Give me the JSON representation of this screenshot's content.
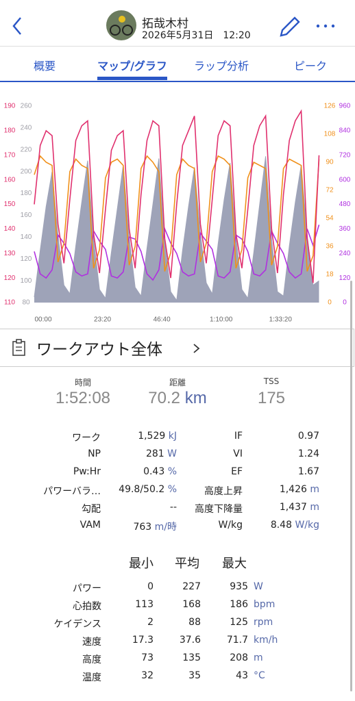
{
  "header": {
    "title": "拓哉木村",
    "datetime": "2026年5月31日　12:20"
  },
  "tabs": {
    "items": [
      "概要",
      "マップ/グラフ",
      "ラップ分析",
      "ピーク"
    ],
    "active": 1
  },
  "chart_data": {
    "type": "line",
    "x": [
      0,
      140,
      280,
      420,
      560,
      700,
      840,
      980,
      1120,
      1260,
      1400,
      1540,
      1680,
      1820,
      1960,
      2100,
      2240,
      2380,
      2520,
      2660,
      2800,
      2940,
      3080,
      3220,
      3360,
      3500,
      3640,
      3780,
      3920,
      4060,
      4200,
      4340,
      4480,
      4620,
      4760,
      4900,
      5040,
      5180,
      5320,
      5460,
      5600,
      5740,
      5880,
      6020,
      6160,
      6300,
      6440,
      6580,
      6720
    ],
    "xlim": [
      0,
      6728
    ],
    "xticks": [
      {
        "value": 0,
        "label": "00:00"
      },
      {
        "value": 1400,
        "label": "23:20"
      },
      {
        "value": 2800,
        "label": "46:40"
      },
      {
        "value": 4200,
        "label": "1:10:00"
      },
      {
        "value": 5600,
        "label": "1:33:20"
      }
    ],
    "axes": [
      {
        "side": "left",
        "color": "#e0306e",
        "lim": [
          110,
          190
        ],
        "ticks": [
          110,
          120,
          130,
          140,
          150,
          160,
          170,
          180,
          190
        ]
      },
      {
        "side": "left",
        "color": "#a0a0a8",
        "lim": [
          80,
          260
        ],
        "ticks": [
          80,
          100,
          120,
          140,
          160,
          180,
          200,
          220,
          240,
          260
        ]
      },
      {
        "side": "right",
        "color": "#f0901a",
        "lim": [
          0,
          126
        ],
        "ticks": [
          0,
          18,
          36,
          54,
          72,
          90,
          108,
          126
        ]
      },
      {
        "side": "right",
        "color": "#b030e0",
        "lim": [
          0,
          960
        ],
        "ticks": [
          0,
          120,
          240,
          360,
          480,
          600,
          720,
          840,
          960
        ]
      }
    ],
    "series": [
      {
        "axis": 1,
        "fill": true,
        "color": "#9ea3b8",
        "values": [
          85,
          128,
          168,
          200,
          142,
          96,
          88,
          132,
          172,
          210,
          138,
          92,
          84,
          126,
          166,
          206,
          140,
          94,
          86,
          130,
          170,
          212,
          136,
          90,
          82,
          128,
          168,
          204,
          144,
          98,
          88,
          134,
          174,
          208,
          140,
          92,
          84,
          126,
          170,
          214,
          138,
          90,
          86,
          132,
          172,
          206,
          142,
          96,
          100
        ]
      },
      {
        "axis": 3,
        "color": "#b030e0",
        "values": [
          250,
          140,
          120,
          160,
          330,
          290,
          240,
          150,
          130,
          140,
          350,
          300,
          260,
          130,
          120,
          150,
          320,
          310,
          250,
          140,
          110,
          160,
          360,
          290,
          240,
          150,
          130,
          140,
          340,
          300,
          260,
          130,
          120,
          150,
          330,
          310,
          250,
          140,
          130,
          160,
          350,
          290,
          240,
          150,
          120,
          140,
          360,
          280,
          380
        ]
      },
      {
        "axis": 2,
        "color": "#f0901a",
        "values": [
          82,
          94,
          90,
          88,
          26,
          38,
          84,
          92,
          88,
          86,
          22,
          34,
          80,
          90,
          92,
          88,
          24,
          36,
          86,
          94,
          90,
          84,
          20,
          32,
          82,
          92,
          88,
          86,
          26,
          38,
          84,
          94,
          92,
          88,
          22,
          34,
          80,
          90,
          88,
          86,
          24,
          36,
          86,
          92,
          90,
          88,
          20,
          30,
          92
        ]
      },
      {
        "axis": 0,
        "color": "#e0306e",
        "values": [
          150,
          174,
          180,
          178,
          142,
          126,
          152,
          176,
          182,
          184,
          138,
          122,
          148,
          172,
          178,
          180,
          140,
          124,
          154,
          176,
          184,
          182,
          136,
          120,
          150,
          174,
          180,
          186,
          142,
          126,
          152,
          178,
          184,
          182,
          138,
          124,
          148,
          174,
          182,
          186,
          140,
          122,
          154,
          176,
          184,
          188,
          136,
          118,
          170
        ]
      }
    ]
  },
  "workout": {
    "title": "ワークアウト全体"
  },
  "summary": [
    {
      "label": "時間",
      "value": "1:52:08"
    },
    {
      "label": "距離",
      "value": "70.2",
      "unit": "km"
    },
    {
      "label": "TSS",
      "value": "175"
    }
  ],
  "metrics": [
    [
      {
        "label": "ワーク",
        "value": "1,529",
        "unit": "kJ"
      },
      {
        "label": "IF",
        "value": "0.97"
      }
    ],
    [
      {
        "label": "NP",
        "value": "281",
        "unit": "W"
      },
      {
        "label": "VI",
        "value": "1.24"
      }
    ],
    [
      {
        "label": "Pw:Hr",
        "value": "0.43",
        "unit": "%"
      },
      {
        "label": "EF",
        "value": "1.67"
      }
    ],
    [
      {
        "label": "パワーバラ…",
        "value": "49.8/50.2",
        "unit": "%"
      },
      {
        "label": "高度上昇",
        "value": "1,426",
        "unit": "m"
      }
    ],
    [
      {
        "label": "勾配",
        "value": "--"
      },
      {
        "label": "高度下降量",
        "value": "1,437",
        "unit": "m"
      }
    ],
    [
      {
        "label": "VAM",
        "value": "763",
        "unit": "m/時"
      },
      {
        "label": "W/kg",
        "value": "8.48",
        "unit": "W/kg"
      }
    ]
  ],
  "stats_table": {
    "columns": [
      "最小",
      "平均",
      "最大"
    ],
    "rows": [
      {
        "label": "パワー",
        "min": "0",
        "avg": "227",
        "max": "935",
        "unit": "W"
      },
      {
        "label": "心拍数",
        "min": "113",
        "avg": "168",
        "max": "186",
        "unit": "bpm"
      },
      {
        "label": "ケイデンス",
        "min": "2",
        "avg": "88",
        "max": "125",
        "unit": "rpm"
      },
      {
        "label": "速度",
        "min": "17.3",
        "avg": "37.6",
        "max": "71.7",
        "unit": "km/h"
      },
      {
        "label": "高度",
        "min": "73",
        "avg": "135",
        "max": "208",
        "unit": "m"
      },
      {
        "label": "温度",
        "min": "32",
        "avg": "35",
        "max": "43",
        "unit": "°C"
      }
    ]
  }
}
